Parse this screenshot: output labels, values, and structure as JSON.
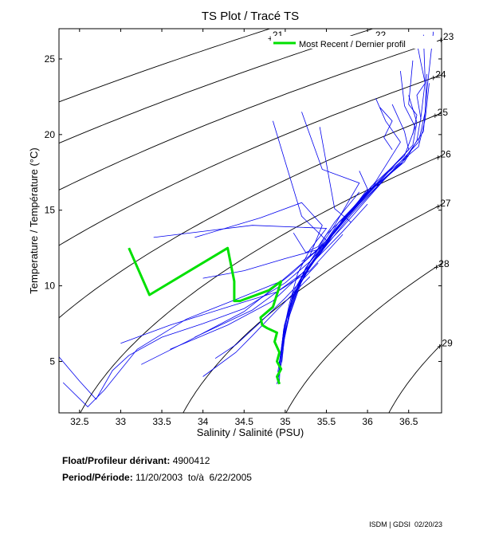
{
  "chart_data": {
    "type": "line",
    "title": "TS Plot / Tracé TS",
    "xlabel": "Salinity / Salinité (PSU)",
    "ylabel": "Temperature / Température (°C)",
    "xlim": [
      32.25,
      36.9
    ],
    "ylim": [
      1.6,
      27
    ],
    "xticks": [
      32.5,
      33,
      33.5,
      34,
      34.5,
      35,
      35.5,
      36,
      36.5
    ],
    "xtick_labels": [
      "32.5",
      "33",
      "33.5",
      "34",
      "34.5",
      "35",
      "35.5",
      "36",
      "36.5"
    ],
    "yticks": [
      5,
      10,
      15,
      20,
      25
    ],
    "ytick_labels": [
      "5",
      "10",
      "15",
      "20",
      "25"
    ],
    "legend": {
      "label": "Most Recent / Dernier profil",
      "color": "#00e000",
      "position": "top-right"
    },
    "density_isopycnals": [
      {
        "label": "21",
        "sigma": 21
      },
      {
        "label": "22",
        "sigma": 22
      },
      {
        "label": "23",
        "sigma": 23
      },
      {
        "label": "24",
        "sigma": 24
      },
      {
        "label": "25",
        "sigma": 25
      },
      {
        "label": "26",
        "sigma": 26
      },
      {
        "label": "27",
        "sigma": 27
      },
      {
        "label": "28",
        "sigma": 28
      },
      {
        "label": "29",
        "sigma": 29
      }
    ],
    "series": [
      {
        "name": "Most Recent / Dernier profil",
        "color": "#00e000",
        "points": [
          [
            33.1,
            12.5
          ],
          [
            33.35,
            9.4
          ],
          [
            34.3,
            12.5
          ],
          [
            34.38,
            10.3
          ],
          [
            34.38,
            9.0
          ],
          [
            34.45,
            9.0
          ],
          [
            34.8,
            9.7
          ],
          [
            34.95,
            10.3
          ],
          [
            34.85,
            8.6
          ],
          [
            34.7,
            7.9
          ],
          [
            34.72,
            7.4
          ],
          [
            34.78,
            7.2
          ],
          [
            34.9,
            6.9
          ],
          [
            34.87,
            6.3
          ],
          [
            34.93,
            5.6
          ],
          [
            34.9,
            5.0
          ],
          [
            34.95,
            4.5
          ],
          [
            34.9,
            4.0
          ],
          [
            34.93,
            3.5
          ]
        ]
      },
      {
        "name": "Profiles",
        "color": "#0000ee",
        "profiles": [
          [
            [
              36.68,
              26.6
            ],
            [
              36.7,
              23.5
            ],
            [
              36.65,
              21.2
            ],
            [
              36.6,
              19.6
            ],
            [
              36.45,
              18.2
            ],
            [
              36.1,
              16.6
            ],
            [
              35.7,
              14.3
            ],
            [
              35.45,
              12.4
            ],
            [
              35.2,
              10.5
            ],
            [
              35.07,
              8.4
            ],
            [
              34.98,
              6.5
            ],
            [
              34.95,
              4.8
            ],
            [
              34.9,
              3.5
            ]
          ],
          [
            [
              36.72,
              24.0
            ],
            [
              36.7,
              21.5
            ],
            [
              36.62,
              19.5
            ],
            [
              36.3,
              17.6
            ],
            [
              35.9,
              15.6
            ],
            [
              35.55,
              13.2
            ],
            [
              35.3,
              11.4
            ],
            [
              35.1,
              9.3
            ],
            [
              35.0,
              7.0
            ],
            [
              34.96,
              5.0
            ],
            [
              34.9,
              4.0
            ]
          ],
          [
            [
              36.5,
              22.6
            ],
            [
              36.6,
              20.8
            ],
            [
              36.55,
              19.3
            ],
            [
              36.2,
              17.2
            ],
            [
              35.8,
              15.0
            ],
            [
              35.5,
              13.0
            ],
            [
              35.25,
              11.2
            ],
            [
              35.08,
              9.1
            ],
            [
              34.98,
              7.1
            ],
            [
              34.93,
              4.5
            ]
          ],
          [
            [
              36.8,
              26.8
            ],
            [
              36.72,
              22.8
            ],
            [
              36.68,
              20.2
            ],
            [
              36.4,
              18.0
            ],
            [
              36.0,
              16.2
            ],
            [
              35.6,
              13.7
            ],
            [
              35.35,
              11.7
            ],
            [
              35.15,
              9.8
            ],
            [
              35.02,
              7.8
            ],
            [
              34.95,
              5.5
            ],
            [
              34.92,
              4.1
            ]
          ],
          [
            [
              36.3,
              22.0
            ],
            [
              36.45,
              20.2
            ],
            [
              36.5,
              19.0
            ],
            [
              36.15,
              17.0
            ],
            [
              35.65,
              14.2
            ],
            [
              35.4,
              12.2
            ],
            [
              35.2,
              10.3
            ],
            [
              35.05,
              8.0
            ],
            [
              34.97,
              6.0
            ],
            [
              34.92,
              4.7
            ]
          ],
          [
            [
              36.4,
              24.2
            ],
            [
              36.45,
              21.9
            ],
            [
              36.58,
              20.5
            ],
            [
              36.45,
              18.6
            ],
            [
              36.05,
              16.6
            ],
            [
              35.7,
              14.4
            ],
            [
              35.45,
              12.3
            ],
            [
              35.2,
              10.6
            ],
            [
              35.06,
              8.6
            ],
            [
              35.0,
              6.8
            ],
            [
              34.94,
              5.2
            ],
            [
              34.93,
              3.7
            ]
          ],
          [
            [
              36.75,
              23.4
            ],
            [
              36.7,
              21.0
            ],
            [
              36.62,
              19.2
            ],
            [
              36.25,
              17.5
            ],
            [
              35.85,
              15.2
            ],
            [
              35.5,
              13.4
            ],
            [
              35.25,
              11.1
            ],
            [
              35.12,
              9.6
            ],
            [
              34.99,
              7.4
            ],
            [
              34.95,
              5.7
            ],
            [
              34.91,
              4.3
            ]
          ],
          [
            [
              36.1,
              22.4
            ],
            [
              36.22,
              20.9
            ],
            [
              36.4,
              19.5
            ],
            [
              36.1,
              16.9
            ],
            [
              35.75,
              14.6
            ],
            [
              35.5,
              12.8
            ],
            [
              35.3,
              11.2
            ],
            [
              35.1,
              9.5
            ],
            [
              35.0,
              7.6
            ],
            [
              34.96,
              5.9
            ],
            [
              34.92,
              4.0
            ]
          ],
          [
            [
              35.2,
              21.5
            ],
            [
              35.45,
              17.7
            ],
            [
              35.9,
              16.8
            ],
            [
              35.6,
              14.0
            ],
            [
              35.3,
              11.6
            ],
            [
              35.1,
              9.6
            ],
            [
              35.0,
              7.5
            ],
            [
              34.95,
              5.3
            ],
            [
              34.91,
              3.8
            ]
          ],
          [
            [
              33.4,
              13.2
            ],
            [
              34.6,
              14.0
            ],
            [
              35.5,
              13.8
            ],
            [
              35.3,
              12.4
            ],
            [
              35.15,
              10.8
            ],
            [
              35.05,
              8.8
            ],
            [
              34.98,
              7.0
            ],
            [
              34.93,
              4.9
            ]
          ],
          [
            [
              32.25,
              5.3
            ],
            [
              32.5,
              3.7
            ],
            [
              32.7,
              2.5
            ],
            [
              32.9,
              4.4
            ],
            [
              33.1,
              5.4
            ],
            [
              33.5,
              6.6
            ],
            [
              34.0,
              7.5
            ],
            [
              34.5,
              8.5
            ],
            [
              35.0,
              10.2
            ],
            [
              35.3,
              11.6
            ],
            [
              35.7,
              13.9
            ],
            [
              36.2,
              17.0
            ],
            [
              36.5,
              18.6
            ]
          ],
          [
            [
              32.3,
              3.6
            ],
            [
              32.6,
              2.0
            ],
            [
              32.8,
              3.1
            ],
            [
              33.2,
              5.8
            ],
            [
              33.8,
              7.8
            ],
            [
              34.4,
              9.1
            ],
            [
              34.95,
              10.3
            ],
            [
              35.4,
              12.4
            ],
            [
              35.9,
              15.4
            ],
            [
              36.4,
              18.1
            ]
          ],
          [
            [
              33.25,
              4.8
            ],
            [
              33.8,
              6.3
            ],
            [
              34.5,
              8.3
            ],
            [
              35.1,
              10.9
            ],
            [
              35.6,
              13.5
            ],
            [
              36.1,
              16.8
            ]
          ],
          [
            [
              33.6,
              5.8
            ],
            [
              34.3,
              7.4
            ],
            [
              34.85,
              9.0
            ],
            [
              35.3,
              11.3
            ],
            [
              35.8,
              14.7
            ],
            [
              36.3,
              17.6
            ]
          ],
          [
            [
              33.0,
              6.2
            ],
            [
              33.6,
              7.4
            ],
            [
              34.3,
              8.6
            ],
            [
              34.9,
              9.6
            ],
            [
              35.3,
              11.0
            ],
            [
              35.7,
              13.4
            ]
          ],
          [
            [
              34.0,
              10.5
            ],
            [
              34.5,
              11.0
            ],
            [
              35.0,
              11.8
            ],
            [
              35.4,
              12.4
            ],
            [
              35.5,
              12.8
            ],
            [
              35.2,
              11.6
            ]
          ],
          [
            [
              35.1,
              13.5
            ],
            [
              35.25,
              12.2
            ],
            [
              35.4,
              12.6
            ],
            [
              35.6,
              14.2
            ],
            [
              35.9,
              16.2
            ]
          ],
          [
            [
              33.9,
              6.6
            ],
            [
              34.6,
              8.4
            ],
            [
              35.2,
              10.8
            ],
            [
              35.7,
              13.6
            ],
            [
              36.0,
              15.4
            ]
          ],
          [
            [
              34.15,
              5.2
            ],
            [
              34.4,
              6.1
            ],
            [
              34.7,
              7.6
            ],
            [
              35.0,
              9.2
            ],
            [
              35.4,
              11.5
            ]
          ],
          [
            [
              34.0,
              4.0
            ],
            [
              34.4,
              5.6
            ],
            [
              34.6,
              6.7
            ],
            [
              34.9,
              8.4
            ],
            [
              35.3,
              10.6
            ]
          ],
          [
            [
              33.9,
              13.2
            ],
            [
              34.7,
              14.5
            ],
            [
              35.2,
              15.5
            ],
            [
              35.45,
              14.0
            ],
            [
              35.3,
              12.0
            ]
          ],
          [
            [
              34.85,
              20.9
            ],
            [
              35.2,
              14.6
            ],
            [
              35.5,
              13.0
            ]
          ],
          [
            [
              35.42,
              20.5
            ],
            [
              35.6,
              15.1
            ],
            [
              35.8,
              14.2
            ]
          ],
          [
            [
              35.9,
              17.6
            ],
            [
              36.0,
              16.4
            ],
            [
              35.85,
              15.3
            ],
            [
              36.1,
              16.7
            ]
          ],
          [
            [
              36.15,
              21.8
            ],
            [
              36.3,
              20.9
            ],
            [
              36.2,
              19.8
            ],
            [
              36.3,
              19.0
            ]
          ],
          [
            [
              36.55,
              24.9
            ],
            [
              36.5,
              22.0
            ],
            [
              36.6,
              21.3
            ],
            [
              36.55,
              20.0
            ]
          ],
          [
            [
              36.6,
              26.1
            ],
            [
              36.65,
              24.7
            ],
            [
              36.7,
              23.4
            ],
            [
              36.6,
              22.6
            ],
            [
              36.65,
              21.0
            ]
          ]
        ]
      }
    ]
  },
  "float_info": {
    "float_label": "Float/Profileur dérivant:",
    "float_value": "4900412",
    "period_label": "Period/Période:",
    "period_value": "11/20/2003  to/à  6/22/2005"
  },
  "footer": {
    "stamp": "ISDM | GDSI  02/20/23"
  }
}
